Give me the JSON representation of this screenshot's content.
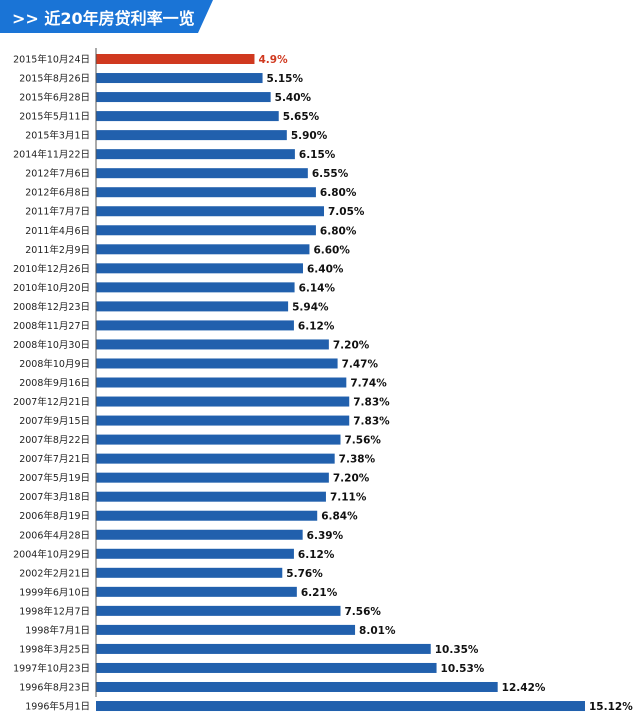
{
  "header": {
    "title": ">> 近20年房贷利率一览",
    "color": "#1a74d6"
  },
  "chart_data": {
    "type": "bar",
    "orientation": "horizontal",
    "title": "近20年房贷利率一览",
    "categories": [
      "2015年10月24日",
      "2015年8月26日",
      "2015年6月28日",
      "2015年5月11日",
      "2015年3月1日",
      "2014年11月22日",
      "2012年7月6日",
      "2012年6月8日",
      "2011年7月7日",
      "2011年4月6日",
      "2011年2月9日",
      "2010年12月26日",
      "2010年10月20日",
      "2008年12月23日",
      "2008年11月27日",
      "2008年10月30日",
      "2008年10月9日",
      "2008年9月16日",
      "2007年12月21日",
      "2007年9月15日",
      "2007年8月22日",
      "2007年7月21日",
      "2007年5月19日",
      "2007年3月18日",
      "2006年8月19日",
      "2006年4月28日",
      "2004年10月29日",
      "2002年2月21日",
      "1999年6月10日",
      "1998年12月7日",
      "1998年7月1日",
      "1998年3月25日",
      "1997年10月23日",
      "1996年8月23日",
      "1996年5月1日"
    ],
    "values": [
      4.9,
      5.15,
      5.4,
      5.65,
      5.9,
      6.15,
      6.55,
      6.8,
      7.05,
      6.8,
      6.6,
      6.4,
      6.14,
      5.94,
      6.12,
      7.2,
      7.47,
      7.74,
      7.83,
      7.83,
      7.56,
      7.38,
      7.2,
      7.11,
      6.84,
      6.39,
      6.12,
      5.76,
      6.21,
      7.56,
      8.01,
      10.35,
      10.53,
      12.42,
      15.12
    ],
    "value_labels": [
      "4.9%",
      "5.15%",
      "5.40%",
      "5.65%",
      "5.90%",
      "6.15%",
      "6.55%",
      "6.80%",
      "7.05%",
      "6.80%",
      "6.60%",
      "6.40%",
      "6.14%",
      "5.94%",
      "6.12%",
      "7.20%",
      "7.47%",
      "7.74%",
      "7.83%",
      "7.83%",
      "7.56%",
      "7.38%",
      "7.20%",
      "7.11%",
      "6.84%",
      "6.39%",
      "6.12%",
      "5.76%",
      "6.21%",
      "7.56%",
      "8.01%",
      "10.35%",
      "10.53%",
      "12.42%",
      "15.12%"
    ],
    "unit": "%",
    "xlim": [
      0,
      15.5
    ],
    "grid": false,
    "legend": "none",
    "colors": {
      "default": "#2160ad",
      "highlight": "#d0391f"
    },
    "highlight_index": 0
  }
}
